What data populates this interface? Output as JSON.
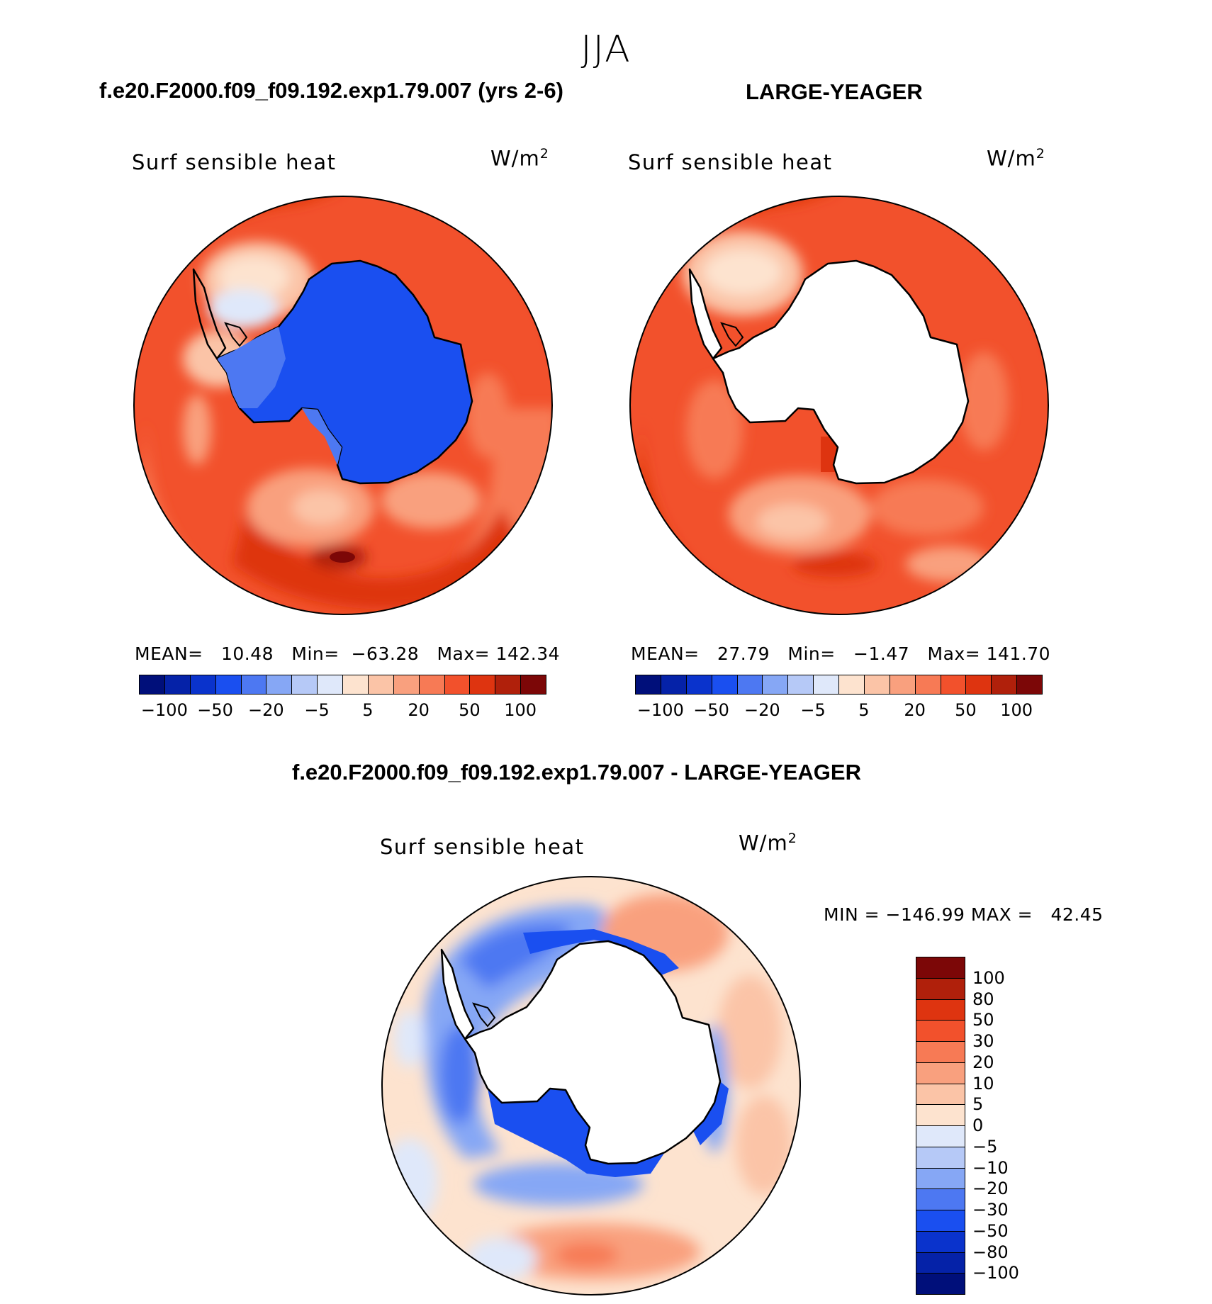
{
  "figure": {
    "season": "JJA",
    "variable": "Surf  sensible  heat",
    "units_base": "W/m",
    "units_exp": "2"
  },
  "panels": [
    {
      "id": "model",
      "case_title": "f.e20.F2000.f09_f09.192.exp1.79.007 (yrs 2-6)",
      "stats": {
        "mean_label": "MEAN=",
        "mean": "10.48",
        "min_label": "Min=",
        "min": "−63.28",
        "max_label": "Max=",
        "max": "142.34"
      },
      "continent": "filled"
    },
    {
      "id": "obs",
      "case_title": "LARGE-YEAGER",
      "stats": {
        "mean_label": "MEAN=",
        "mean": "27.79",
        "min_label": "Min=",
        "min": "−1.47",
        "max_label": "Max=",
        "max": "141.70"
      },
      "continent": "masked"
    }
  ],
  "difference": {
    "title": "f.e20.F2000.f09_f09.192.exp1.79.007 - LARGE-YEAGER",
    "min_label": "MIN =",
    "min": "−146.99",
    "max_label": "MAX =",
    "max": "42.45"
  },
  "chart_data": {
    "type": "heatmap",
    "projection": "south-polar-stereographic",
    "colorbar_top": {
      "tick_labels": [
        "−100",
        "−50",
        "−20",
        "−5",
        "5",
        "20",
        "50",
        "100"
      ],
      "colors": [
        "#000f7a",
        "#0522a8",
        "#0a33cc",
        "#1a4ff0",
        "#4d78f2",
        "#86a7f5",
        "#b6c9f7",
        "#dfe8fa",
        "#fde3cf",
        "#fbc4a7",
        "#f9a07e",
        "#f77a55",
        "#f2512c",
        "#de3410",
        "#b0200b",
        "#7c0707"
      ]
    },
    "colorbar_diff": {
      "tick_labels": [
        "100",
        "80",
        "50",
        "30",
        "20",
        "10",
        "5",
        "0",
        "−5",
        "−10",
        "−20",
        "−30",
        "−50",
        "−80",
        "−100"
      ],
      "colors": [
        "#7c0707",
        "#b0200b",
        "#de3410",
        "#f2512c",
        "#f77a55",
        "#f9a07e",
        "#fbc4a7",
        "#fde3cf",
        "#dfe8fa",
        "#b6c9f7",
        "#86a7f5",
        "#4d78f2",
        "#1a4ff0",
        "#0a33cc",
        "#0522a8",
        "#000f7a"
      ]
    }
  }
}
